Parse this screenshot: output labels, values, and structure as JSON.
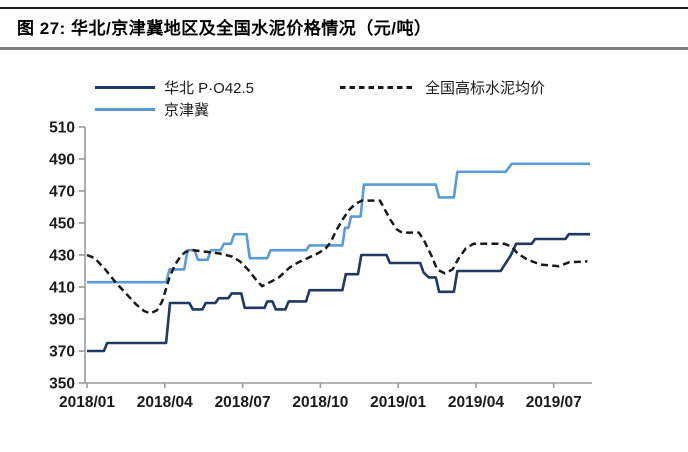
{
  "title": "图 27:  华北/京津冀地区及全国水泥价格情况（元/吨）",
  "chart_data": {
    "type": "line",
    "title": "华北/京津冀地区及全国水泥价格情况",
    "unit": "元/吨",
    "legend_position": "top",
    "grid": "off",
    "x_axis": {
      "tick_labels": [
        "2018/01",
        "2018/04",
        "2018/07",
        "2018/10",
        "2019/01",
        "2019/04",
        "2019/07"
      ],
      "months_between_ticks": 3,
      "domain_months": [
        0,
        19.4
      ]
    },
    "y_axis": {
      "min": 350,
      "max": 510,
      "step": 20,
      "ticks": [
        510,
        490,
        470,
        450,
        430,
        410,
        390,
        370,
        350
      ]
    },
    "axis_color": "#9a9a9a",
    "tick_label_color": "#1a1a1a",
    "series": [
      {
        "name": "华北 P·O42.5",
        "color": "#1f3864",
        "style": "solid",
        "points": [
          [
            0,
            370
          ],
          [
            0.65,
            370
          ],
          [
            0.78,
            375
          ],
          [
            3.05,
            375
          ],
          [
            3.2,
            400
          ],
          [
            3.95,
            400
          ],
          [
            4.08,
            396
          ],
          [
            4.45,
            396
          ],
          [
            4.58,
            400
          ],
          [
            4.95,
            400
          ],
          [
            5.08,
            403
          ],
          [
            5.45,
            403
          ],
          [
            5.58,
            406
          ],
          [
            5.95,
            406
          ],
          [
            6.08,
            397
          ],
          [
            6.85,
            397
          ],
          [
            6.95,
            401
          ],
          [
            7.15,
            401
          ],
          [
            7.28,
            396
          ],
          [
            7.65,
            396
          ],
          [
            7.78,
            401
          ],
          [
            8.45,
            401
          ],
          [
            8.58,
            408
          ],
          [
            9.85,
            408
          ],
          [
            9.98,
            418
          ],
          [
            10.45,
            418
          ],
          [
            10.58,
            430
          ],
          [
            11.55,
            430
          ],
          [
            11.68,
            425
          ],
          [
            12.85,
            425
          ],
          [
            12.98,
            419
          ],
          [
            13.18,
            416
          ],
          [
            13.45,
            416
          ],
          [
            13.58,
            407
          ],
          [
            14.15,
            407
          ],
          [
            14.28,
            420
          ],
          [
            15.95,
            420
          ],
          [
            16.15,
            425
          ],
          [
            16.35,
            430
          ],
          [
            16.55,
            437
          ],
          [
            17.15,
            437
          ],
          [
            17.28,
            440
          ],
          [
            18.45,
            440
          ],
          [
            18.58,
            443
          ],
          [
            19.4,
            443
          ]
        ]
      },
      {
        "name": "京津冀",
        "color": "#5b9bd5",
        "style": "solid",
        "points": [
          [
            0,
            413
          ],
          [
            3.05,
            413
          ],
          [
            3.18,
            421
          ],
          [
            3.75,
            421
          ],
          [
            3.88,
            433
          ],
          [
            4.15,
            433
          ],
          [
            4.28,
            427
          ],
          [
            4.65,
            427
          ],
          [
            4.78,
            433
          ],
          [
            5.15,
            433
          ],
          [
            5.28,
            437
          ],
          [
            5.55,
            437
          ],
          [
            5.68,
            443
          ],
          [
            6.15,
            443
          ],
          [
            6.28,
            428
          ],
          [
            6.95,
            428
          ],
          [
            7.08,
            433
          ],
          [
            8.45,
            433
          ],
          [
            8.58,
            436
          ],
          [
            9.85,
            436
          ],
          [
            9.95,
            447
          ],
          [
            10.08,
            447
          ],
          [
            10.18,
            454
          ],
          [
            10.55,
            454
          ],
          [
            10.68,
            474
          ],
          [
            13.45,
            474
          ],
          [
            13.58,
            466
          ],
          [
            14.15,
            466
          ],
          [
            14.28,
            482
          ],
          [
            16.15,
            482
          ],
          [
            16.38,
            487
          ],
          [
            19.4,
            487
          ]
        ]
      },
      {
        "name": "全国高标水泥均价",
        "color": "#1a1a1a",
        "style": "dashed",
        "points": [
          [
            0,
            430
          ],
          [
            0.3,
            428
          ],
          [
            0.7,
            421
          ],
          [
            1.1,
            413
          ],
          [
            1.5,
            406
          ],
          [
            1.9,
            399
          ],
          [
            2.2,
            395
          ],
          [
            2.45,
            393.5
          ],
          [
            2.7,
            395.5
          ],
          [
            2.9,
            401
          ],
          [
            3.05,
            409
          ],
          [
            3.2,
            417
          ],
          [
            3.4,
            424
          ],
          [
            3.6,
            429
          ],
          [
            3.8,
            432
          ],
          [
            4.1,
            433
          ],
          [
            4.6,
            432
          ],
          [
            5.1,
            431
          ],
          [
            5.6,
            429
          ],
          [
            5.9,
            426
          ],
          [
            6.2,
            421
          ],
          [
            6.5,
            415
          ],
          [
            6.75,
            410.5
          ],
          [
            7.0,
            412.5
          ],
          [
            7.4,
            416
          ],
          [
            7.8,
            422
          ],
          [
            8.1,
            425
          ],
          [
            8.5,
            428
          ],
          [
            8.9,
            431
          ],
          [
            9.2,
            434
          ],
          [
            9.4,
            438
          ],
          [
            9.6,
            445
          ],
          [
            9.85,
            452
          ],
          [
            10.1,
            458
          ],
          [
            10.35,
            462
          ],
          [
            10.6,
            464
          ],
          [
            11.3,
            464
          ],
          [
            11.5,
            458
          ],
          [
            11.7,
            452
          ],
          [
            11.95,
            446
          ],
          [
            12.15,
            444
          ],
          [
            12.8,
            444
          ],
          [
            13.0,
            439
          ],
          [
            13.3,
            429
          ],
          [
            13.5,
            421
          ],
          [
            13.8,
            418.5
          ],
          [
            14.1,
            421
          ],
          [
            14.3,
            427
          ],
          [
            14.6,
            434
          ],
          [
            14.9,
            437
          ],
          [
            16.1,
            437
          ],
          [
            16.4,
            435
          ],
          [
            16.6,
            431
          ],
          [
            17.0,
            427
          ],
          [
            17.5,
            424
          ],
          [
            18.2,
            423
          ],
          [
            18.6,
            425.5
          ],
          [
            19.3,
            426
          ]
        ]
      }
    ]
  }
}
